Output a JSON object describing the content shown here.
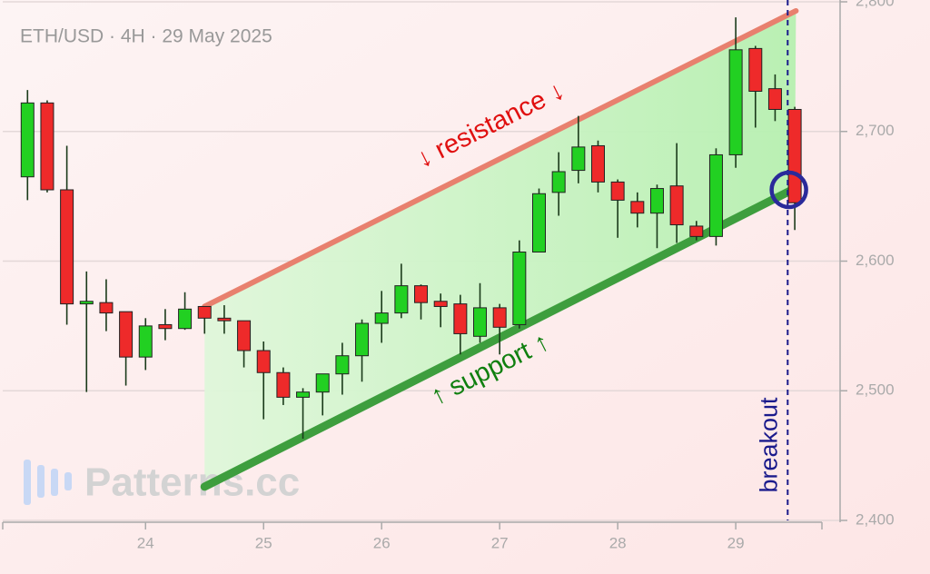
{
  "chart_data": {
    "type": "candlestick",
    "title": "ETH/USD · 4H · 29 May 2025",
    "watermark": "Patterns.cc",
    "up_color": "#22d022",
    "down_color": "#ee2a2a",
    "x": [
      23.0,
      23.1667,
      23.3333,
      23.5,
      23.6667,
      23.8333,
      24.0,
      24.1667,
      24.3333,
      24.5,
      24.6667,
      24.8333,
      25.0,
      25.1667,
      25.3333,
      25.5,
      25.6667,
      25.8333,
      26.0,
      26.1667,
      26.3333,
      26.5,
      26.6667,
      26.8333,
      27.0,
      27.1667,
      27.3333,
      27.5,
      27.6667,
      27.8333,
      28.0,
      28.1667,
      28.3333,
      28.5,
      28.6667,
      28.8333,
      29.0,
      29.1667,
      29.3333,
      29.5
    ],
    "open": [
      2665,
      2722,
      2655,
      2567,
      2568,
      2561,
      2526,
      2551,
      2548,
      2565,
      2556,
      2554,
      2531,
      2514,
      2495,
      2499,
      2513,
      2527,
      2552,
      2560,
      2581,
      2569,
      2567,
      2542,
      2564,
      2551,
      2607,
      2653,
      2670,
      2689,
      2661,
      2646,
      2637,
      2658,
      2627,
      2619,
      2682,
      2764,
      2733,
      2717
    ],
    "high": [
      2732,
      2724,
      2689,
      2592,
      2586,
      2561,
      2556,
      2563,
      2576,
      2565,
      2566,
      2554,
      2538,
      2518,
      2502,
      2513,
      2537,
      2555,
      2577,
      2598,
      2582,
      2575,
      2574,
      2583,
      2567,
      2616,
      2656,
      2684,
      2712,
      2693,
      2663,
      2653,
      2659,
      2691,
      2631,
      2687,
      2788,
      2766,
      2744,
      2719
    ],
    "low": [
      2647,
      2653,
      2551,
      2499,
      2546,
      2504,
      2516,
      2539,
      2547,
      2544,
      2544,
      2518,
      2478,
      2489,
      2463,
      2481,
      2497,
      2507,
      2537,
      2556,
      2555,
      2549,
      2528,
      2537,
      2528,
      2548,
      2607,
      2635,
      2660,
      2653,
      2618,
      2626,
      2610,
      2614,
      2616,
      2612,
      2672,
      2703,
      2708,
      2624
    ],
    "close": [
      2722,
      2655,
      2567,
      2569,
      2560,
      2526,
      2550,
      2548,
      2563,
      2556,
      2554,
      2531,
      2514,
      2495,
      2499,
      2513,
      2527,
      2552,
      2560,
      2581,
      2568,
      2565,
      2544,
      2564,
      2549,
      2607,
      2652,
      2669,
      2688,
      2661,
      2647,
      2637,
      2656,
      2628,
      2619,
      2682,
      2763,
      2731,
      2717,
      2645
    ],
    "xlim": [
      22.79,
      29.73
    ],
    "xticks": [
      24,
      25,
      26,
      27,
      28,
      29
    ],
    "ylim": [
      2400,
      2800
    ],
    "yticks": [
      {
        "value": 2400,
        "label": "2,400"
      },
      {
        "value": 2500,
        "label": "2,500"
      },
      {
        "value": 2600,
        "label": "2,600"
      },
      {
        "value": 2700,
        "label": "2,700"
      },
      {
        "value": 2800,
        "label": "2,800"
      }
    ],
    "grid": true,
    "resistance": {
      "label": "↓ resistance ↓",
      "color": "#e8806e",
      "x": [
        24.5,
        29.51
      ],
      "y": [
        2565,
        2793
      ]
    },
    "support": {
      "label": "↑ support ↑",
      "color": "#3e9e3e",
      "x": [
        24.5,
        29.5
      ],
      "y": [
        2426,
        2656
      ]
    },
    "breakout": {
      "label": "breakout",
      "color": "#1a1a8c",
      "x": 29.44
    },
    "marker": {
      "x": 29.45,
      "y": 2655,
      "color": "#2a2a9a"
    }
  }
}
